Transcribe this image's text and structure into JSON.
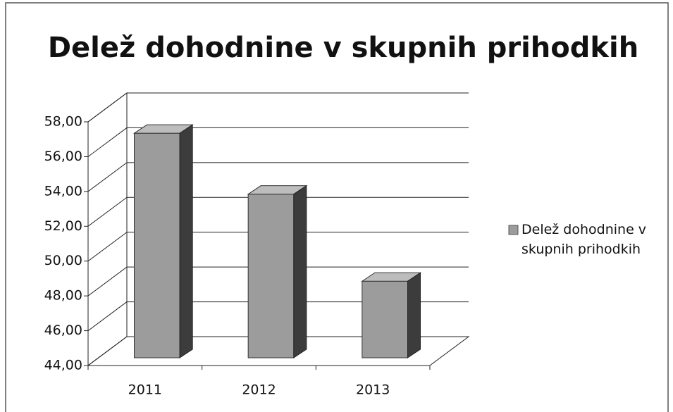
{
  "chart_data": {
    "type": "bar3d",
    "title": "Delež dohodnine v skupnih prihodkih",
    "categories": [
      "2011",
      "2012",
      "2013"
    ],
    "series": [
      {
        "name": "Delež dohodnine v skupnih prihodkih",
        "color": "#9c9c9c",
        "values": [
          56.9,
          53.4,
          48.4
        ]
      }
    ],
    "ylim": [
      44,
      58
    ],
    "yticks": [
      {
        "value": 44,
        "label": "44,00"
      },
      {
        "value": 46,
        "label": "46,00"
      },
      {
        "value": 48,
        "label": "48,00"
      },
      {
        "value": 50,
        "label": "50,00"
      },
      {
        "value": 52,
        "label": "52,00"
      },
      {
        "value": 54,
        "label": "54,00"
      },
      {
        "value": 56,
        "label": "56,00"
      },
      {
        "value": 58,
        "label": "58,00"
      }
    ],
    "grid": true,
    "legend": "right"
  }
}
